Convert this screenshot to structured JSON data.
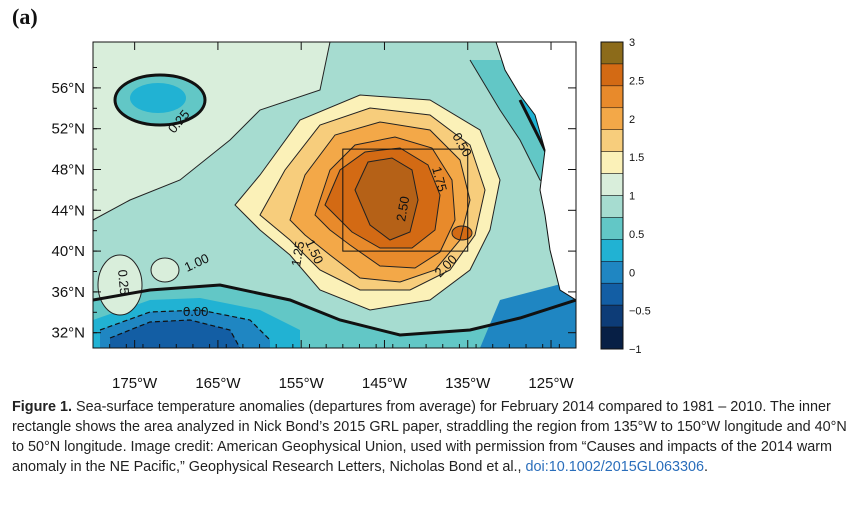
{
  "panel_label": "(a)",
  "map": {
    "lat_labels": [
      "56°N",
      "52°N",
      "48°N",
      "44°N",
      "40°N",
      "36°N",
      "32°N"
    ],
    "lat_values": [
      56,
      52,
      48,
      44,
      40,
      36,
      32
    ],
    "lon_labels": [
      "175°W",
      "165°W",
      "155°W",
      "145°W",
      "135°W",
      "125°W"
    ],
    "lon_values": [
      -175,
      -165,
      -155,
      -145,
      -135,
      -125
    ],
    "lat_range": [
      30.5,
      60.5
    ],
    "lon_range": [
      -180,
      -122
    ],
    "contour_labels": [
      "0.25",
      "0.50",
      "1.75",
      "2.50",
      "1.00",
      "1.50",
      "1.25",
      "2.00",
      "0.25",
      "0.00"
    ],
    "inner_rectangle": {
      "lon": [
        -150,
        -135
      ],
      "lat": [
        40,
        50
      ]
    }
  },
  "colorbar": {
    "tick_labels": [
      "3",
      "2.5",
      "2",
      "1.5",
      "1",
      "0.5",
      "0",
      "−0.5",
      "−1"
    ],
    "colors": [
      "#8c6b1a",
      "#d36a14",
      "#e88a2b",
      "#f3a848",
      "#f7cd7c",
      "#fbf1b8",
      "#d9eedb",
      "#a6dcd0",
      "#62c7c6",
      "#21b2d3",
      "#1f86c2",
      "#135ea4",
      "#0d3c77",
      "#071f45"
    ]
  },
  "caption": {
    "lead": "Figure 1.",
    "text": " Sea-surface temperature anomalies (departures from average) for February 2014 compared to 1981 – 2010. The inner rectangle shows the area analyzed in Nick Bond’s 2015 GRL paper, straddling the region from 135°W to 150°W longitude and 40°N to 50°N longitude. Image credit: American Geophysical Union, used with permission from “Causes and impacts of the 2014 warm anomaly in the NE Pacific,” Geophysical Research Letters, Nicholas Bond et al., ",
    "doi": "doi:10.1002/2015GL063306",
    "end": "."
  }
}
